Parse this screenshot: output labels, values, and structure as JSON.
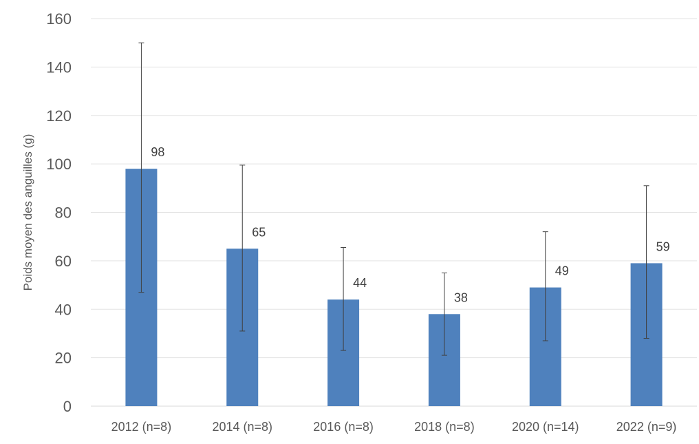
{
  "chart_data": {
    "type": "bar",
    "title": "",
    "xlabel": "",
    "ylabel": "Poids moyen des anguilles (g)",
    "ylim": [
      0,
      160
    ],
    "yticks": [
      0,
      20,
      40,
      60,
      80,
      100,
      120,
      140,
      160
    ],
    "grid": true,
    "bar_color": "#4f81bd",
    "categories": [
      "2012 (n=8)",
      "2014 (n=8)",
      "2016 (n=8)",
      "2018 (n=8)",
      "2020 (n=14)",
      "2022 (n=9)"
    ],
    "values": [
      98,
      65,
      44,
      38,
      49,
      59
    ],
    "value_labels": [
      "98",
      "65",
      "44",
      "38",
      "49",
      "59"
    ],
    "error_bars": [
      {
        "low": 47,
        "high": 150
      },
      {
        "low": 31,
        "high": 99.5
      },
      {
        "low": 23,
        "high": 65.5
      },
      {
        "low": 21,
        "high": 55
      },
      {
        "low": 27,
        "high": 72
      },
      {
        "low": 28,
        "high": 91
      }
    ]
  }
}
